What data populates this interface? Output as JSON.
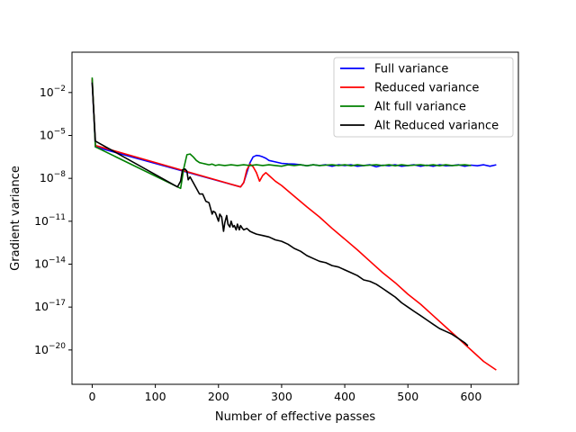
{
  "chart_data": {
    "type": "line",
    "title": "",
    "xlabel": "Number of effective passes",
    "ylabel": "Gradient variance",
    "xlim": [
      -32,
      675
    ],
    "ylim": [
      -22.4,
      0.82
    ],
    "y_scale": "log",
    "x_ticks": [
      0,
      100,
      200,
      300,
      400,
      500,
      600
    ],
    "y_ticks": [
      {
        "exp": -2,
        "label": "-2"
      },
      {
        "exp": -5,
        "label": "-5"
      },
      {
        "exp": -8,
        "label": "-8"
      },
      {
        "exp": -11,
        "label": "-11"
      },
      {
        "exp": -14,
        "label": "-14"
      },
      {
        "exp": -17,
        "label": "-17"
      },
      {
        "exp": -20,
        "label": "-20"
      }
    ],
    "grid": false,
    "legend_position": "upper-right",
    "series": [
      {
        "name": "Full variance",
        "color": "#0000ff",
        "x": [
          0,
          5,
          235,
          240,
          245,
          250,
          255,
          260,
          265,
          270,
          275,
          280,
          290,
          300,
          310,
          320,
          330,
          340,
          350,
          360,
          370,
          380,
          390,
          400,
          410,
          420,
          430,
          440,
          450,
          460,
          470,
          480,
          490,
          500,
          510,
          520,
          530,
          540,
          550,
          560,
          570,
          580,
          590,
          600,
          610,
          620,
          630,
          640
        ],
        "y_exp": [
          -1.15,
          -5.8,
          -8.6,
          -8.3,
          -7.6,
          -6.9,
          -6.5,
          -6.4,
          -6.42,
          -6.5,
          -6.6,
          -6.75,
          -6.85,
          -6.95,
          -6.98,
          -7.0,
          -7.05,
          -7.12,
          -7.05,
          -7.1,
          -7.05,
          -7.15,
          -7.05,
          -7.1,
          -7.05,
          -7.15,
          -7.1,
          -7.05,
          -7.2,
          -7.08,
          -7.12,
          -7.05,
          -7.15,
          -7.1,
          -7.05,
          -7.15,
          -7.08,
          -7.15,
          -7.05,
          -7.12,
          -7.1,
          -7.05,
          -7.15,
          -7.08,
          -7.12,
          -7.05,
          -7.15,
          -7.05
        ]
      },
      {
        "name": "Reduced variance",
        "color": "#ff0000",
        "x": [
          0,
          5,
          235,
          240,
          245,
          250,
          255,
          260,
          265,
          270,
          275,
          280,
          290,
          300,
          320,
          340,
          360,
          380,
          400,
          420,
          440,
          460,
          480,
          500,
          520,
          540,
          560,
          580,
          600,
          620,
          640
        ],
        "y_exp": [
          -1.05,
          -5.7,
          -8.6,
          -8.3,
          -7.4,
          -7.0,
          -7.2,
          -7.6,
          -8.2,
          -7.8,
          -7.6,
          -7.8,
          -8.2,
          -8.5,
          -9.25,
          -10.0,
          -10.7,
          -11.5,
          -12.25,
          -13.0,
          -13.8,
          -14.6,
          -15.3,
          -16.1,
          -16.8,
          -17.6,
          -18.4,
          -19.2,
          -20.0,
          -20.8,
          -21.4
        ]
      },
      {
        "name": "Alt full variance",
        "color": "#008000",
        "x": [
          0,
          5,
          140,
          145,
          150,
          155,
          160,
          165,
          170,
          175,
          180,
          185,
          190,
          195,
          200,
          210,
          220,
          230,
          240,
          250,
          260,
          270,
          280,
          290,
          300,
          310,
          320,
          330,
          340,
          350,
          360,
          370,
          380,
          390,
          400,
          410,
          420,
          430,
          440,
          450,
          460,
          470,
          480,
          490,
          500,
          510,
          520,
          530,
          540,
          550,
          560,
          570,
          580,
          590,
          600
        ],
        "y_exp": [
          -0.95,
          -5.8,
          -8.7,
          -7.3,
          -6.35,
          -6.3,
          -6.5,
          -6.75,
          -6.9,
          -6.95,
          -7.0,
          -7.05,
          -7.0,
          -7.1,
          -7.05,
          -7.1,
          -7.05,
          -7.1,
          -7.05,
          -7.1,
          -7.05,
          -7.1,
          -7.05,
          -7.1,
          -7.15,
          -7.05,
          -7.1,
          -7.05,
          -7.12,
          -7.05,
          -7.1,
          -7.08,
          -7.05,
          -7.1,
          -7.05,
          -7.12,
          -7.05,
          -7.1,
          -7.08,
          -7.05,
          -7.1,
          -7.05,
          -7.12,
          -7.05,
          -7.1,
          -7.08,
          -7.05,
          -7.1,
          -7.05,
          -7.12,
          -7.05,
          -7.1,
          -7.08,
          -7.05,
          -7.1
        ]
      },
      {
        "name": "Alt Reduced variance",
        "color": "#000000",
        "x": [
          0,
          5,
          135,
          140,
          143,
          147,
          150,
          152,
          155,
          160,
          165,
          170,
          175,
          180,
          185,
          190,
          192,
          195,
          200,
          202,
          205,
          208,
          210,
          213,
          215,
          218,
          220,
          223,
          225,
          228,
          230,
          233,
          235,
          238,
          240,
          245,
          250,
          255,
          260,
          270,
          280,
          290,
          300,
          310,
          320,
          330,
          340,
          350,
          360,
          370,
          380,
          390,
          400,
          410,
          420,
          430,
          440,
          450,
          460,
          470,
          480,
          490,
          500,
          510,
          520,
          530,
          540,
          550,
          560,
          570,
          580,
          590,
          595
        ],
        "y_exp": [
          -1.3,
          -5.4,
          -8.6,
          -8.2,
          -7.4,
          -7.35,
          -7.5,
          -8.1,
          -7.9,
          -8.3,
          -8.7,
          -9.1,
          -9.1,
          -9.6,
          -9.7,
          -10.5,
          -10.3,
          -10.4,
          -11.0,
          -10.5,
          -10.7,
          -11.7,
          -11.1,
          -10.6,
          -11.2,
          -11.4,
          -11.0,
          -11.4,
          -11.3,
          -11.6,
          -11.2,
          -11.6,
          -11.3,
          -11.5,
          -11.6,
          -11.5,
          -11.7,
          -11.8,
          -11.9,
          -12.0,
          -12.1,
          -12.3,
          -12.4,
          -12.6,
          -12.9,
          -13.1,
          -13.4,
          -13.6,
          -13.8,
          -13.9,
          -14.1,
          -14.2,
          -14.4,
          -14.6,
          -14.8,
          -15.1,
          -15.2,
          -15.4,
          -15.7,
          -16.0,
          -16.3,
          -16.7,
          -17.0,
          -17.3,
          -17.6,
          -17.9,
          -18.2,
          -18.5,
          -18.7,
          -18.9,
          -19.2,
          -19.5,
          -19.7
        ]
      }
    ]
  }
}
